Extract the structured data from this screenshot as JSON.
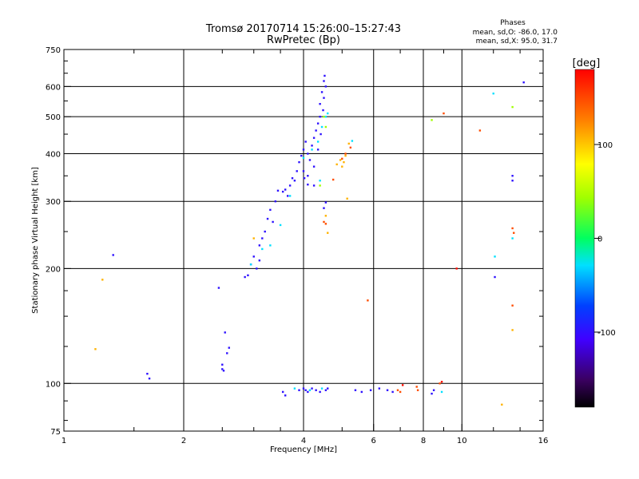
{
  "chart_data": {
    "type": "scatter",
    "title": "Tromsø 20170714 15:26:00–15:27:43",
    "subtitle": "RwPretec (Bp)",
    "xlabel": "Frequency [MHz]",
    "ylabel": "Stationary phase Virtual Height [km]",
    "x_scale": "log",
    "y_scale": "log",
    "xlim": [
      1,
      16
    ],
    "ylim": [
      75,
      750
    ],
    "grid": true,
    "x_ticks": [
      1,
      2,
      4,
      6,
      8,
      10,
      16
    ],
    "x_tick_labels": [
      "1",
      "2",
      "4",
      "6",
      "8",
      "10",
      "16"
    ],
    "y_ticks": [
      75,
      100,
      200,
      300,
      400,
      500,
      600,
      750
    ],
    "y_tick_labels": [
      "75",
      "100",
      "200",
      "300",
      "400",
      "500",
      "600",
      "750"
    ],
    "phase_info": {
      "header": "Phases",
      "line1": "mean, sd,O: -86.0, 17.0",
      "line2": "mean, sd,X:  95.0, 31.7"
    },
    "colorbar": {
      "label": "[deg]",
      "range": [
        -180,
        180
      ],
      "ticks": [
        100,
        0,
        -100
      ],
      "tick_labels": [
        "100",
        "0",
        "-100"
      ]
    },
    "series": [
      {
        "phase": -100,
        "points": [
          [
            1.33,
            217
          ],
          [
            1.62,
            106
          ],
          [
            1.64,
            103
          ],
          [
            2.45,
            178
          ],
          [
            2.54,
            136
          ],
          [
            2.6,
            124
          ],
          [
            2.5,
            112
          ],
          [
            2.5,
            109
          ],
          [
            2.52,
            108
          ],
          [
            2.57,
            120
          ],
          [
            2.85,
            190
          ],
          [
            2.9,
            192
          ],
          [
            2.95,
            205
          ],
          [
            3.0,
            215
          ],
          [
            3.05,
            200
          ],
          [
            3.1,
            230
          ],
          [
            3.1,
            210
          ],
          [
            3.15,
            240
          ],
          [
            3.2,
            250
          ],
          [
            3.25,
            270
          ],
          [
            3.3,
            285
          ],
          [
            3.35,
            265
          ],
          [
            3.4,
            300
          ],
          [
            3.45,
            320
          ],
          [
            3.55,
            318
          ],
          [
            3.6,
            322
          ],
          [
            3.65,
            310
          ],
          [
            3.7,
            330
          ],
          [
            3.75,
            345
          ],
          [
            3.8,
            340
          ],
          [
            3.85,
            360
          ],
          [
            3.9,
            380
          ],
          [
            3.95,
            395
          ],
          [
            4.0,
            410
          ],
          [
            4.0,
            360
          ],
          [
            4.05,
            430
          ],
          [
            4.1,
            400
          ],
          [
            4.15,
            385
          ],
          [
            4.2,
            420
          ],
          [
            4.25,
            440
          ],
          [
            4.3,
            460
          ],
          [
            4.35,
            480
          ],
          [
            4.4,
            500
          ],
          [
            4.4,
            540
          ],
          [
            4.45,
            580
          ],
          [
            4.5,
            620
          ],
          [
            4.5,
            560
          ],
          [
            4.55,
            600
          ],
          [
            4.52,
            640
          ],
          [
            4.48,
            520
          ],
          [
            4.42,
            450
          ],
          [
            4.35,
            410
          ],
          [
            4.25,
            370
          ],
          [
            4.1,
            350
          ],
          [
            4.02,
            345
          ],
          [
            3.55,
            95
          ],
          [
            3.6,
            93
          ],
          [
            3.9,
            96
          ],
          [
            4.0,
            97
          ],
          [
            4.05,
            96
          ],
          [
            4.1,
            95
          ],
          [
            4.2,
            97
          ],
          [
            4.3,
            96
          ],
          [
            4.4,
            95
          ],
          [
            4.55,
            96
          ],
          [
            4.6,
            97
          ],
          [
            5.4,
            96
          ],
          [
            5.6,
            95
          ],
          [
            5.9,
            96
          ],
          [
            6.2,
            97
          ],
          [
            6.5,
            96
          ],
          [
            6.7,
            95
          ],
          [
            8.4,
            94
          ],
          [
            8.5,
            96
          ],
          [
            12.1,
            190
          ],
          [
            13.4,
            340
          ],
          [
            13.4,
            350
          ],
          [
            14.3,
            615
          ],
          [
            4.5,
            288
          ],
          [
            4.55,
            298
          ],
          [
            4.1,
            332
          ],
          [
            4.25,
            330
          ]
        ]
      },
      {
        "phase": -30,
        "points": [
          [
            2.95,
            205
          ],
          [
            3.15,
            225
          ],
          [
            3.3,
            230
          ],
          [
            3.5,
            260
          ],
          [
            3.7,
            310
          ],
          [
            4.0,
            390
          ],
          [
            4.2,
            410
          ],
          [
            4.35,
            430
          ],
          [
            4.45,
            470
          ],
          [
            4.55,
            500
          ],
          [
            4.6,
            510
          ],
          [
            3.8,
            97
          ],
          [
            4.15,
            96
          ],
          [
            4.45,
            97
          ],
          [
            5.3,
            432
          ],
          [
            8.9,
            95
          ],
          [
            12.0,
            575
          ],
          [
            12.1,
            215
          ],
          [
            13.4,
            240
          ],
          [
            4.4,
            340
          ]
        ]
      },
      {
        "phase": 45,
        "points": [
          [
            4.5,
            500
          ],
          [
            4.55,
            470
          ],
          [
            8.4,
            490
          ],
          [
            13.4,
            530
          ],
          [
            4.4,
            330
          ]
        ]
      },
      {
        "phase": 110,
        "points": [
          [
            1.2,
            123
          ],
          [
            1.25,
            187
          ],
          [
            3.0,
            240
          ],
          [
            4.95,
            385
          ],
          [
            5.05,
            380
          ],
          [
            5.1,
            395
          ],
          [
            5.0,
            370
          ],
          [
            4.6,
            248
          ],
          [
            4.55,
            275
          ],
          [
            5.15,
            305
          ],
          [
            12.6,
            88
          ],
          [
            13.4,
            138
          ],
          [
            4.85,
            375
          ],
          [
            5.2,
            425
          ]
        ]
      },
      {
        "phase": 150,
        "points": [
          [
            4.5,
            265
          ],
          [
            4.55,
            262
          ],
          [
            5.0,
            388
          ],
          [
            5.1,
            400
          ],
          [
            5.25,
            415
          ],
          [
            4.75,
            342
          ],
          [
            6.9,
            96
          ],
          [
            7.0,
            95
          ],
          [
            7.7,
            98
          ],
          [
            7.75,
            96
          ],
          [
            8.8,
            100
          ],
          [
            9.0,
            510
          ],
          [
            11.1,
            460
          ],
          [
            5.8,
            165
          ],
          [
            13.4,
            160
          ],
          [
            13.4,
            255
          ],
          [
            13.5,
            248
          ]
        ]
      },
      {
        "phase": 175,
        "points": [
          [
            9.7,
            200
          ],
          [
            8.9,
            101
          ],
          [
            7.1,
            99
          ]
        ]
      }
    ]
  }
}
